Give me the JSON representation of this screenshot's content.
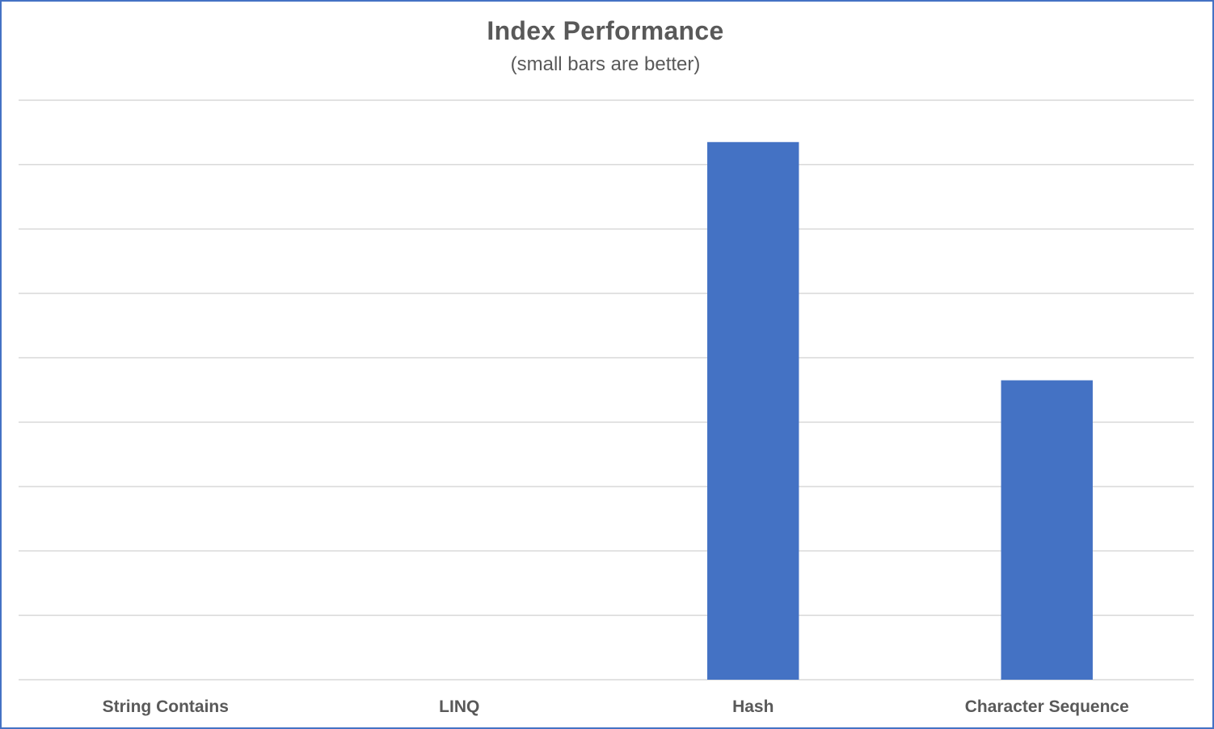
{
  "chart_data": {
    "type": "bar",
    "title": "Index Performance",
    "subtitle": "(small bars are better)",
    "categories": [
      "String Contains",
      "LINQ",
      "Hash",
      "Character Sequence"
    ],
    "values": [
      0,
      0,
      8.35,
      4.65
    ],
    "ylim": [
      0,
      9
    ],
    "gridlines": 10,
    "grid": true,
    "y_tick_labels_visible": false,
    "legend": "none",
    "bar_color": "#4472c4",
    "grid_color": "#d9d9d9",
    "text_color": "#595959",
    "border_color": "#4472c4"
  }
}
